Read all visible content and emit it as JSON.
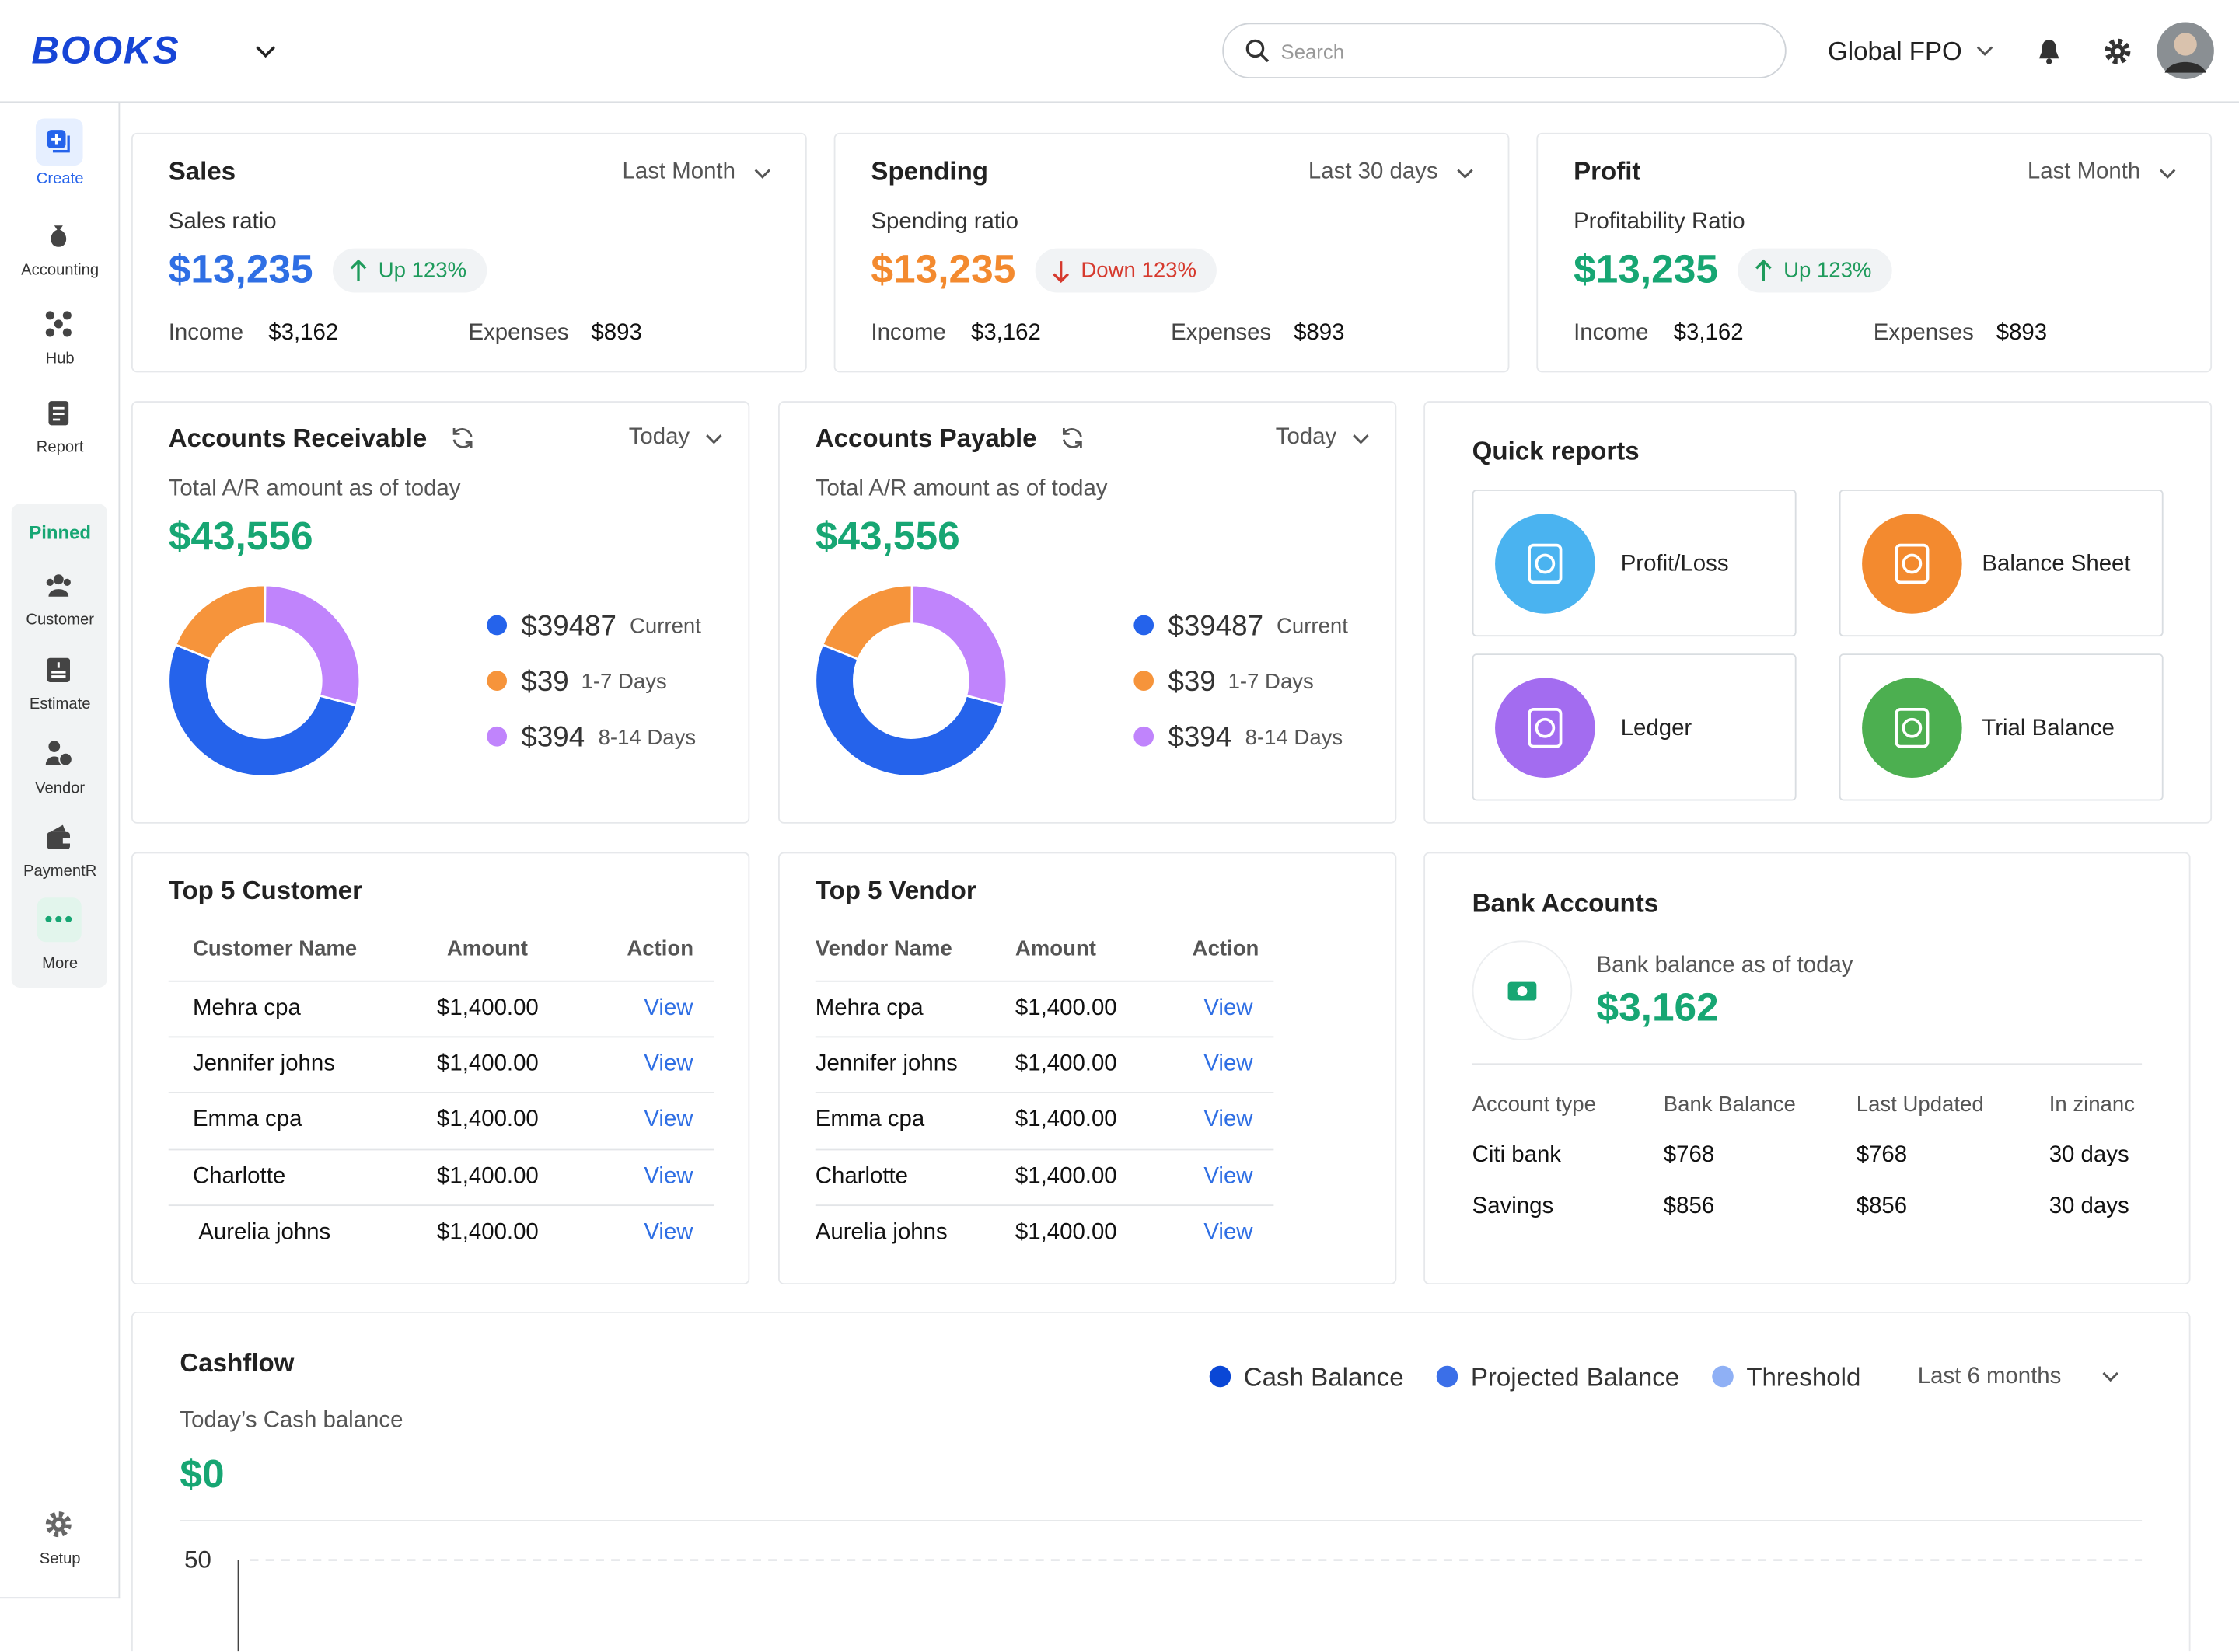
{
  "header": {
    "logo": "BOOKS",
    "search": "Search",
    "organization": "Global FPO"
  },
  "sidebar": {
    "main": [
      "Create",
      "Accounting",
      "Hub",
      "Report"
    ],
    "pinned_title": "Pinned",
    "pinned": [
      "Customer",
      "Estimate",
      "Vendor",
      "PaymentR",
      "More"
    ],
    "setup": "Setup"
  },
  "summary": [
    {
      "title": "Sales",
      "period": "Last Month",
      "ratio_label": "Sales ratio",
      "amount": "$13,235",
      "change": "Up 123%",
      "income_label": "Income",
      "income": "$3,162",
      "expenses_label": "Expenses",
      "expenses": "$893"
    },
    {
      "title": "Spending",
      "period": "Last 30 days",
      "ratio_label": "Spending ratio",
      "amount": "$13,235",
      "change": "Down 123%",
      "income_label": "Income",
      "income": "$3,162",
      "expenses_label": "Expenses",
      "expenses": "$893"
    },
    {
      "title": "Profit",
      "period": "Last Month",
      "ratio_label": "Profitability Ratio",
      "amount": "$13,235",
      "change": "Up 123%",
      "income_label": "Income",
      "income": "$3,162",
      "expenses_label": "Expenses",
      "expenses": "$893"
    }
  ],
  "accounts": [
    {
      "title": "Accounts Receivable",
      "period": "Today",
      "subtitle": "Total A/R amount as of today",
      "total": "$43,556",
      "legend": [
        {
          "amount": "$39487",
          "label": "Current"
        },
        {
          "amount": "$39",
          "label": "1-7 Days"
        },
        {
          "amount": "$394",
          "label": "8-14 Days"
        }
      ]
    },
    {
      "title": "Accounts Payable",
      "period": "Today",
      "subtitle": "Total A/R amount as of today",
      "total": "$43,556",
      "legend": [
        {
          "amount": "$39487",
          "label": "Current"
        },
        {
          "amount": "$39",
          "label": "1-7 Days"
        },
        {
          "amount": "$394",
          "label": "8-14 Days"
        }
      ]
    }
  ],
  "quick_reports": {
    "title": "Quick reports",
    "items": [
      "Profit/Loss",
      "Balance Sheet",
      "Ledger",
      "Trial Balance"
    ]
  },
  "top_customer": {
    "title": "Top 5 Customer",
    "columns": [
      "Customer Name",
      "Amount",
      "Action"
    ],
    "rows": [
      [
        "Mehra cpa",
        "$1,400.00",
        "View"
      ],
      [
        "Jennifer johns",
        "$1,400.00",
        "View"
      ],
      [
        "Emma cpa",
        "$1,400.00",
        "View"
      ],
      [
        "Charlotte",
        "$1,400.00",
        "View"
      ],
      [
        "Aurelia johns",
        "$1,400.00",
        "View"
      ]
    ]
  },
  "top_vendor": {
    "title": "Top 5 Vendor",
    "columns": [
      "Vendor Name",
      "Amount",
      "Action"
    ],
    "rows": [
      [
        "Mehra cpa",
        "$1,400.00",
        "View"
      ],
      [
        "Jennifer johns",
        "$1,400.00",
        "View"
      ],
      [
        "Emma cpa",
        "$1,400.00",
        "View"
      ],
      [
        "Charlotte",
        "$1,400.00",
        "View"
      ],
      [
        "Aurelia johns",
        "$1,400.00",
        "View"
      ]
    ]
  },
  "bank_accounts": {
    "title": "Bank Accounts",
    "subtitle": "Bank balance as of today",
    "amount": "$3,162",
    "columns": [
      "Account type",
      "Bank Balance",
      "Last Updated",
      "In zinanc"
    ],
    "rows": [
      [
        "Citi bank",
        "$768",
        "$768",
        "30 days"
      ],
      [
        "Savings",
        "$856",
        "$856",
        "30 days"
      ]
    ]
  },
  "cashflow": {
    "title": "Cashflow",
    "period": "Last 6 months",
    "subtitle": "Today’s Cash balance",
    "amount": "$0"
  },
  "chart_data": [
    {
      "type": "pie",
      "values": [
        52,
        19,
        29
      ],
      "colors": [
        "#2563eb",
        "#f6943b",
        "#c084fc"
      ]
    },
    {
      "type": "pie",
      "values": [
        52,
        19,
        29
      ],
      "colors": [
        "#2563eb",
        "#f6943b",
        "#c084fc"
      ]
    },
    {
      "type": "line",
      "series": [
        {
          "name": "Cash Balance",
          "color": "#0a47d6",
          "values": []
        },
        {
          "name": "Projected Balance",
          "color": "#3b6fe8",
          "values": []
        },
        {
          "name": "Threshold",
          "color": "#8fb0f5",
          "values": []
        }
      ],
      "ylim": [
        0,
        50
      ],
      "yticks": [
        50
      ],
      "grid": true
    }
  ]
}
